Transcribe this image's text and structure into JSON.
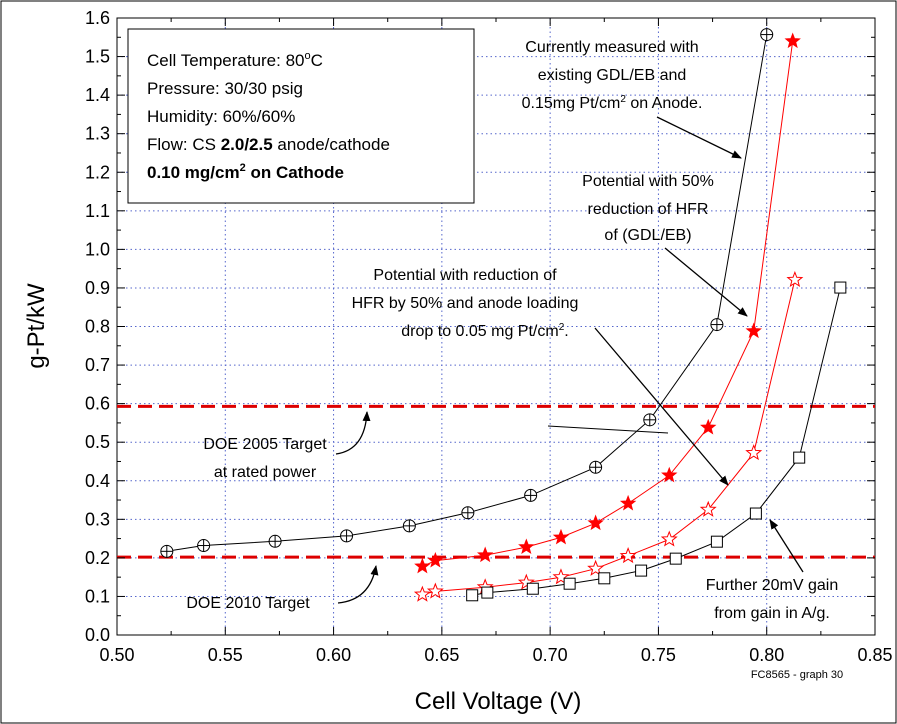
{
  "chart_data": {
    "type": "scatter",
    "xlabel": "Cell Voltage (V)",
    "ylabel": "g-Pt/kW",
    "xlim": [
      0.5,
      0.85
    ],
    "ylim": [
      0.0,
      1.6
    ],
    "x_ticks": [
      "0.50",
      "0.55",
      "0.60",
      "0.65",
      "0.70",
      "0.75",
      "0.80",
      "0.85"
    ],
    "y_ticks": [
      "0.0",
      "0.1",
      "0.2",
      "0.3",
      "0.4",
      "0.5",
      "0.6",
      "0.7",
      "0.8",
      "0.9",
      "1.0",
      "1.1",
      "1.2",
      "1.3",
      "1.4",
      "1.5",
      "1.6"
    ],
    "grid": true,
    "series": [
      {
        "marker": "circle-plus",
        "color": "#000000",
        "x": [
          0.523,
          0.54,
          0.573,
          0.606,
          0.635,
          0.662,
          0.691,
          0.721,
          0.746,
          0.777,
          0.8
        ],
        "y": [
          0.217,
          0.232,
          0.243,
          0.257,
          0.283,
          0.317,
          0.362,
          0.435,
          0.558,
          0.805,
          1.557
        ]
      },
      {
        "marker": "star-filled",
        "color": "#ff0000",
        "x": [
          0.641,
          0.647,
          0.67,
          0.689,
          0.705,
          0.721,
          0.736,
          0.755,
          0.773,
          0.794,
          0.812
        ],
        "y": [
          0.178,
          0.193,
          0.207,
          0.228,
          0.253,
          0.29,
          0.341,
          0.414,
          0.538,
          0.788,
          1.54
        ]
      },
      {
        "marker": "star-open",
        "color": "#ff0000",
        "x": [
          0.641,
          0.647,
          0.67,
          0.689,
          0.705,
          0.721,
          0.736,
          0.755,
          0.773,
          0.794,
          0.813
        ],
        "y": [
          0.105,
          0.113,
          0.124,
          0.136,
          0.15,
          0.172,
          0.205,
          0.248,
          0.325,
          0.472,
          0.921
        ]
      },
      {
        "marker": "square-open",
        "color": "#000000",
        "x": [
          0.664,
          0.671,
          0.692,
          0.709,
          0.725,
          0.742,
          0.758,
          0.777,
          0.795,
          0.815,
          0.834
        ],
        "y": [
          0.103,
          0.11,
          0.12,
          0.133,
          0.147,
          0.167,
          0.198,
          0.242,
          0.315,
          0.46,
          0.901
        ]
      }
    ],
    "reference_lines": [
      {
        "y": 0.593,
        "color": "#dd0000"
      },
      {
        "y": 0.202,
        "color": "#dd0000"
      }
    ],
    "info_box": {
      "line1": "Cell Temperature: 80",
      "line1_sup": "o",
      "line1_tail": "C",
      "line2": "Pressure: 30/30 psig",
      "line3": "Humidity: 60%/60%",
      "line4_a": "Flow: CS ",
      "line4_b": "2.0/2.5",
      "line4_c": " anode/cathode",
      "line5_a": "0.10 mg/cm",
      "line5_sup": "2",
      "line5_c": " on Cathode"
    },
    "annotations": {
      "a1_l1": "Currently measured with",
      "a1_l2": "existing GDL/EB and",
      "a1_l3": "0.15mg Pt/cm",
      "a1_l3_sup": "2",
      "a1_l3_tail": " on Anode.",
      "a2_l1": "Potential with 50%",
      "a2_l2": "reduction of HFR",
      "a2_l3": "of (GDL/EB)",
      "a3_l1": "Potential with reduction of",
      "a3_l2": "HFR by 50% and anode loading",
      "a3_l3": "drop to 0.05 mg Pt/cm",
      "a3_l3_sup": "2",
      "a3_l3_tail": ".",
      "a4_l1": "DOE 2005 Target",
      "a4_l2": "at rated power",
      "a5_l1": "DOE 2010 Target",
      "a6_l1": "Further 20mV gain",
      "a6_l2": "from gain in A/g."
    },
    "credit": "FC8565 - graph 30"
  }
}
